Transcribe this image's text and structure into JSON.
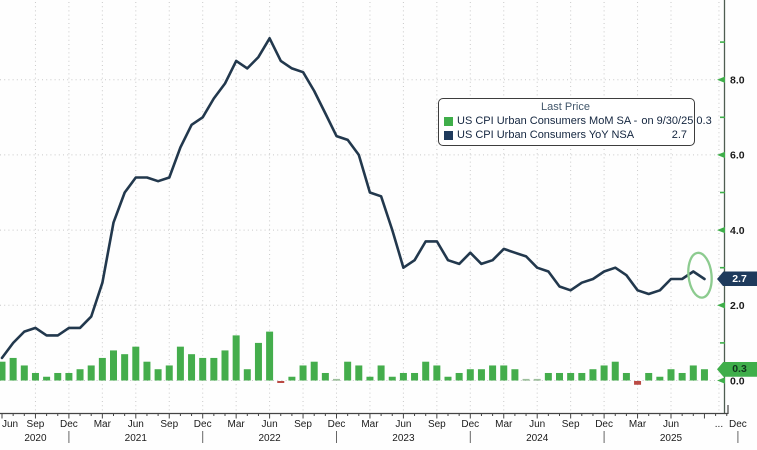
{
  "chart_data": {
    "type": "line+bar",
    "title": "",
    "months": [
      "Jun 2020",
      "Jul 2020",
      "Aug 2020",
      "Sep 2020",
      "Oct 2020",
      "Nov 2020",
      "Dec 2020",
      "Jan 2021",
      "Feb 2021",
      "Mar 2021",
      "Apr 2021",
      "May 2021",
      "Jun 2021",
      "Jul 2021",
      "Aug 2021",
      "Sep 2021",
      "Oct 2021",
      "Nov 2021",
      "Dec 2021",
      "Jan 2022",
      "Feb 2022",
      "Mar 2022",
      "Apr 2022",
      "May 2022",
      "Jun 2022",
      "Jul 2022",
      "Aug 2022",
      "Sep 2022",
      "Oct 2022",
      "Nov 2022",
      "Dec 2022",
      "Jan 2023",
      "Feb 2023",
      "Mar 2023",
      "Apr 2023",
      "May 2023",
      "Jun 2023",
      "Jul 2023",
      "Aug 2023",
      "Sep 2023",
      "Oct 2023",
      "Nov 2023",
      "Dec 2023",
      "Jan 2024",
      "Feb 2024",
      "Mar 2024",
      "Apr 2024",
      "May 2024",
      "Jun 2024",
      "Jul 2024",
      "Aug 2024",
      "Sep 2024",
      "Oct 2024",
      "Nov 2024",
      "Dec 2024",
      "Jan 2025",
      "Feb 2025",
      "Mar 2025",
      "Apr 2025",
      "May 2025",
      "Jun 2025",
      "Jul 2025",
      "Aug 2025",
      "Sep 2025"
    ],
    "series": [
      {
        "name": "US CPI Urban Consumers MoM SA",
        "type": "bar",
        "last_date": "9/30/25",
        "last_value": 0.3,
        "values": [
          0.5,
          0.6,
          0.4,
          0.2,
          0.1,
          0.2,
          0.2,
          0.3,
          0.4,
          0.6,
          0.8,
          0.7,
          0.9,
          0.5,
          0.3,
          0.4,
          0.9,
          0.7,
          0.6,
          0.6,
          0.8,
          1.2,
          0.3,
          1.0,
          1.3,
          -0.05,
          0.1,
          0.4,
          0.5,
          0.2,
          0.05,
          0.5,
          0.4,
          0.1,
          0.4,
          0.1,
          0.2,
          0.2,
          0.5,
          0.4,
          0.1,
          0.2,
          0.3,
          0.3,
          0.4,
          0.4,
          0.3,
          0.0,
          0.0,
          0.2,
          0.2,
          0.2,
          0.2,
          0.3,
          0.4,
          0.5,
          0.2,
          -0.1,
          0.2,
          0.1,
          0.3,
          0.2,
          0.4,
          0.3
        ]
      },
      {
        "name": "US CPI Urban Consumers YoY NSA",
        "type": "line",
        "last_value": 2.7,
        "values": [
          0.6,
          1.0,
          1.3,
          1.4,
          1.2,
          1.2,
          1.4,
          1.4,
          1.7,
          2.6,
          4.2,
          5.0,
          5.4,
          5.4,
          5.3,
          5.4,
          6.2,
          6.8,
          7.0,
          7.5,
          7.9,
          8.5,
          8.3,
          8.6,
          9.1,
          8.5,
          8.3,
          8.2,
          7.7,
          7.1,
          6.5,
          6.4,
          6.0,
          5.0,
          4.9,
          4.0,
          3.0,
          3.2,
          3.7,
          3.7,
          3.2,
          3.1,
          3.4,
          3.1,
          3.2,
          3.5,
          3.4,
          3.3,
          3.0,
          2.9,
          2.5,
          2.4,
          2.6,
          2.7,
          2.9,
          3.0,
          2.8,
          2.4,
          2.3,
          2.4,
          2.7,
          2.7,
          2.9,
          2.7
        ]
      }
    ],
    "y_axis": {
      "side": "right",
      "major_ticks": [
        {
          "v": 0,
          "label": "0.0"
        },
        {
          "v": 2,
          "label": "2.0"
        },
        {
          "v": 4,
          "label": "4.0"
        },
        {
          "v": 6,
          "label": "6.0"
        },
        {
          "v": 8,
          "label": "8.0"
        }
      ],
      "minor_ticks": [
        1,
        3,
        5,
        7,
        9
      ],
      "range": [
        -0.9,
        10.1
      ],
      "grid": "dotted"
    },
    "x_axis": {
      "quarter_ticks": [
        {
          "m": 0,
          "label": "Jun"
        },
        {
          "m": 3,
          "label": "Sep"
        },
        {
          "m": 6,
          "label": "Dec"
        },
        {
          "m": 9,
          "label": "Mar"
        },
        {
          "m": 12,
          "label": "Jun"
        },
        {
          "m": 15,
          "label": "Sep"
        },
        {
          "m": 18,
          "label": "Dec"
        },
        {
          "m": 21,
          "label": "Mar"
        },
        {
          "m": 24,
          "label": "Jun"
        },
        {
          "m": 27,
          "label": "Sep"
        },
        {
          "m": 30,
          "label": "Dec"
        },
        {
          "m": 33,
          "label": "Mar"
        },
        {
          "m": 36,
          "label": "Jun"
        },
        {
          "m": 39,
          "label": "Sep"
        },
        {
          "m": 42,
          "label": "Dec"
        },
        {
          "m": 45,
          "label": "Mar"
        },
        {
          "m": 48,
          "label": "Jun"
        },
        {
          "m": 51,
          "label": "Sep"
        },
        {
          "m": 54,
          "label": "Dec"
        },
        {
          "m": 57,
          "label": "Mar"
        },
        {
          "m": 60,
          "label": "Jun"
        },
        {
          "m": 64.3,
          "label": "..."
        },
        {
          "m": 66,
          "label": "Dec"
        }
      ],
      "year_labels": [
        {
          "m": 3,
          "label": "2020"
        },
        {
          "m": 12,
          "label": "2021"
        },
        {
          "m": 24,
          "label": "2022"
        },
        {
          "m": 36,
          "label": "2023"
        },
        {
          "m": 48,
          "label": "2024"
        },
        {
          "m": 60,
          "label": "2025"
        }
      ],
      "year_separator_months": [
        6,
        18,
        30,
        42,
        54,
        66
      ]
    },
    "legend": {
      "title": "Last Price",
      "rows": [
        {
          "swatch_color": "#3fae4a",
          "label": "US CPI Urban Consumers MoM SA -",
          "right_label": "on 9/30/25 0.3"
        },
        {
          "swatch_color": "#1e3a5c",
          "label": "US CPI Urban Consumers YoY NSA",
          "right_label": "2.7"
        }
      ]
    },
    "price_tags": [
      {
        "id": "yoy",
        "text": "2.7",
        "value": 2.7,
        "bg": "#1e3a5c",
        "fg": "#ffffff"
      },
      {
        "id": "mom",
        "text": "0.3",
        "value": 0.3,
        "bg": "#3fae4a",
        "fg": "#10321c"
      }
    ],
    "annotation_circle": {
      "month_index": 62.6,
      "value": 2.8,
      "color": "#8ccb8f"
    },
    "colors": {
      "bar": "#44ad4c",
      "bar_negative": "#bb4a44",
      "bar_zero": "#9dbf9d",
      "line": "#22384d",
      "grid": "#c9c9c9",
      "axis": "#4e5d52",
      "tick_green": "#3fae4a",
      "label": "#1b1b1b"
    }
  }
}
